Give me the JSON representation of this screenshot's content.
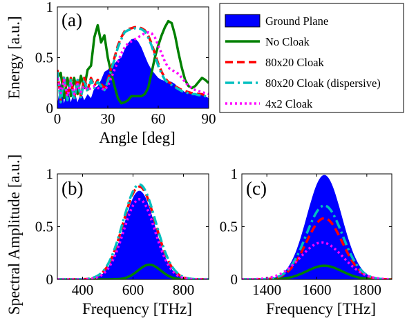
{
  "legend": {
    "items": [
      {
        "name": "Ground Plane",
        "color": "#0000ff",
        "style": "fill"
      },
      {
        "name": "No Cloak",
        "color": "#008000",
        "style": "solid"
      },
      {
        "name": "80x20 Cloak",
        "color": "#ff0000",
        "style": "dashed"
      },
      {
        "name": "80x20 Cloak (dispersive)",
        "color": "#00bfbf",
        "style": "dashdot"
      },
      {
        "name": "4x2 Cloak",
        "color": "#ff00ff",
        "style": "dotted"
      }
    ],
    "placement": "top-right"
  },
  "shared_ylabel": "Spectral Amplitude [a.u.]",
  "chart_data": [
    {
      "type": "area",
      "panel_label": "(a)",
      "xlabel": "Angle [deg]",
      "ylabel": "Energy [a.u.]",
      "xlim": [
        0,
        90
      ],
      "ylim": [
        0,
        1
      ],
      "xticks": [
        "0",
        "30",
        "60",
        "90"
      ],
      "yticks": [
        "0",
        "0.5",
        "1"
      ],
      "series": [
        {
          "name": "Ground Plane",
          "x": [
            0,
            2,
            4,
            6,
            8,
            10,
            12,
            14,
            16,
            18,
            20,
            22,
            24,
            26,
            28,
            30,
            32,
            34,
            36,
            38,
            40,
            42,
            44,
            46,
            48,
            50,
            52,
            54,
            56,
            58,
            60,
            62,
            64,
            66,
            68,
            70,
            72,
            74,
            76,
            78,
            80,
            82,
            84,
            86,
            88,
            90
          ],
          "values": [
            0.05,
            0.25,
            0.05,
            0.2,
            0.06,
            0.18,
            0.06,
            0.16,
            0.08,
            0.14,
            0.1,
            0.2,
            0.22,
            0.28,
            0.36,
            0.38,
            0.42,
            0.44,
            0.48,
            0.5,
            0.58,
            0.64,
            0.68,
            0.69,
            0.66,
            0.6,
            0.52,
            0.44,
            0.38,
            0.34,
            0.3,
            0.28,
            0.27,
            0.27,
            0.26,
            0.24,
            0.2,
            0.18,
            0.16,
            0.16,
            0.15,
            0.14,
            0.14,
            0.13,
            0.12,
            0.1
          ]
        },
        {
          "name": "No Cloak",
          "x": [
            0,
            2,
            4,
            6,
            8,
            10,
            12,
            14,
            16,
            18,
            20,
            22,
            24,
            26,
            28,
            30,
            32,
            34,
            36,
            38,
            40,
            42,
            44,
            46,
            48,
            50,
            52,
            54,
            56,
            58,
            60,
            62,
            64,
            66,
            68,
            70,
            72,
            74,
            76,
            78,
            80,
            82,
            84,
            86,
            88,
            90
          ],
          "values": [
            0.3,
            0.35,
            0.1,
            0.3,
            0.12,
            0.3,
            0.14,
            0.32,
            0.2,
            0.38,
            0.42,
            0.7,
            0.82,
            0.65,
            0.72,
            0.5,
            0.35,
            0.22,
            0.1,
            0.05,
            0.06,
            0.08,
            0.12,
            0.12,
            0.12,
            0.12,
            0.14,
            0.2,
            0.35,
            0.5,
            0.62,
            0.72,
            0.8,
            0.86,
            0.84,
            0.72,
            0.55,
            0.4,
            0.28,
            0.22,
            0.2,
            0.22,
            0.26,
            0.3,
            0.28,
            0.25
          ]
        },
        {
          "name": "80x20 Cloak",
          "x": [
            0,
            2,
            4,
            6,
            8,
            10,
            12,
            14,
            16,
            18,
            20,
            22,
            24,
            26,
            28,
            30,
            32,
            34,
            36,
            38,
            40,
            42,
            44,
            46,
            48,
            50,
            52,
            54,
            56,
            58,
            60,
            62,
            64,
            66,
            68,
            70,
            72,
            74,
            76,
            78,
            80,
            82,
            84,
            86,
            88,
            90
          ],
          "values": [
            0.38,
            0.08,
            0.32,
            0.1,
            0.3,
            0.1,
            0.3,
            0.12,
            0.3,
            0.18,
            0.3,
            0.22,
            0.28,
            0.24,
            0.2,
            0.28,
            0.4,
            0.5,
            0.62,
            0.7,
            0.76,
            0.78,
            0.79,
            0.8,
            0.8,
            0.79,
            0.77,
            0.72,
            0.64,
            0.54,
            0.44,
            0.36,
            0.3,
            0.26,
            0.24,
            0.22,
            0.2,
            0.18,
            0.17,
            0.16,
            0.15,
            0.15,
            0.14,
            0.14,
            0.13,
            0.12
          ]
        },
        {
          "name": "80x20 Cloak (dispersive)",
          "x": [
            0,
            2,
            4,
            6,
            8,
            10,
            12,
            14,
            16,
            18,
            20,
            22,
            24,
            26,
            28,
            30,
            32,
            34,
            36,
            38,
            40,
            42,
            44,
            46,
            48,
            50,
            52,
            54,
            56,
            58,
            60,
            62,
            64,
            66,
            68,
            70,
            72,
            74,
            76,
            78,
            80,
            82,
            84,
            86,
            88,
            90
          ],
          "values": [
            0.36,
            0.06,
            0.3,
            0.08,
            0.28,
            0.08,
            0.28,
            0.1,
            0.28,
            0.16,
            0.28,
            0.2,
            0.26,
            0.22,
            0.18,
            0.26,
            0.38,
            0.48,
            0.6,
            0.68,
            0.75,
            0.77,
            0.78,
            0.79,
            0.79,
            0.78,
            0.76,
            0.7,
            0.62,
            0.52,
            0.42,
            0.34,
            0.28,
            0.25,
            0.23,
            0.21,
            0.19,
            0.17,
            0.16,
            0.15,
            0.14,
            0.14,
            0.13,
            0.13,
            0.12,
            0.11
          ]
        },
        {
          "name": "4x2 Cloak",
          "x": [
            0,
            2,
            4,
            6,
            8,
            10,
            12,
            14,
            16,
            18,
            20,
            22,
            24,
            26,
            28,
            30,
            32,
            34,
            36,
            38,
            40,
            42,
            44,
            46,
            48,
            50,
            52,
            54,
            56,
            58,
            60,
            62,
            64,
            66,
            68,
            70,
            72,
            74,
            76,
            78,
            80,
            82,
            84,
            86,
            88,
            90
          ],
          "values": [
            0.3,
            0.15,
            0.28,
            0.12,
            0.26,
            0.14,
            0.24,
            0.16,
            0.22,
            0.18,
            0.2,
            0.22,
            0.2,
            0.2,
            0.18,
            0.22,
            0.3,
            0.38,
            0.46,
            0.54,
            0.6,
            0.64,
            0.66,
            0.68,
            0.7,
            0.72,
            0.74,
            0.75,
            0.74,
            0.7,
            0.62,
            0.54,
            0.46,
            0.4,
            0.38,
            0.36,
            0.34,
            0.3,
            0.26,
            0.22,
            0.2,
            0.18,
            0.17,
            0.16,
            0.15,
            0.14
          ]
        }
      ]
    },
    {
      "type": "area",
      "panel_label": "(b)",
      "xlabel": "Frequency [THz]",
      "ylabel": "",
      "xlim": [
        300,
        900
      ],
      "ylim": [
        0,
        1
      ],
      "xticks": [
        "400",
        "600",
        "800"
      ],
      "yticks": [
        "0",
        "0.5",
        "1"
      ],
      "series": [
        {
          "name": "Ground Plane",
          "gauss": {
            "amp": 0.84,
            "center": 625,
            "sigma": 62
          }
        },
        {
          "name": "No Cloak",
          "gauss": {
            "amp": 0.14,
            "center": 665,
            "sigma": 45
          }
        },
        {
          "name": "80x20 Cloak",
          "gauss": {
            "amp": 0.88,
            "center": 625,
            "sigma": 64
          }
        },
        {
          "name": "80x20 Cloak (dispersive)",
          "gauss": {
            "amp": 0.9,
            "center": 625,
            "sigma": 65
          }
        },
        {
          "name": "4x2 Cloak",
          "gauss": {
            "amp": 0.76,
            "center": 625,
            "sigma": 62
          }
        }
      ]
    },
    {
      "type": "area",
      "panel_label": "(c)",
      "xlabel": "Frequency [THz]",
      "ylabel": "",
      "xlim": [
        1300,
        1900
      ],
      "ylim": [
        0,
        1
      ],
      "xticks": [
        "1400",
        "1600",
        "1800"
      ],
      "yticks": [
        "0",
        "0.5",
        "1"
      ],
      "series": [
        {
          "name": "Ground Plane",
          "gauss": {
            "amp": 0.99,
            "center": 1630,
            "sigma": 70
          }
        },
        {
          "name": "No Cloak",
          "gauss": {
            "amp": 0.13,
            "center": 1630,
            "sigma": 70
          }
        },
        {
          "name": "80x20 Cloak",
          "gauss": {
            "amp": 0.58,
            "center": 1630,
            "sigma": 72
          }
        },
        {
          "name": "80x20 Cloak (dispersive)",
          "gauss": {
            "amp": 0.7,
            "center": 1630,
            "sigma": 72
          }
        },
        {
          "name": "4x2 Cloak",
          "gauss": {
            "amp": 0.35,
            "center": 1620,
            "sigma": 85
          }
        }
      ]
    }
  ]
}
